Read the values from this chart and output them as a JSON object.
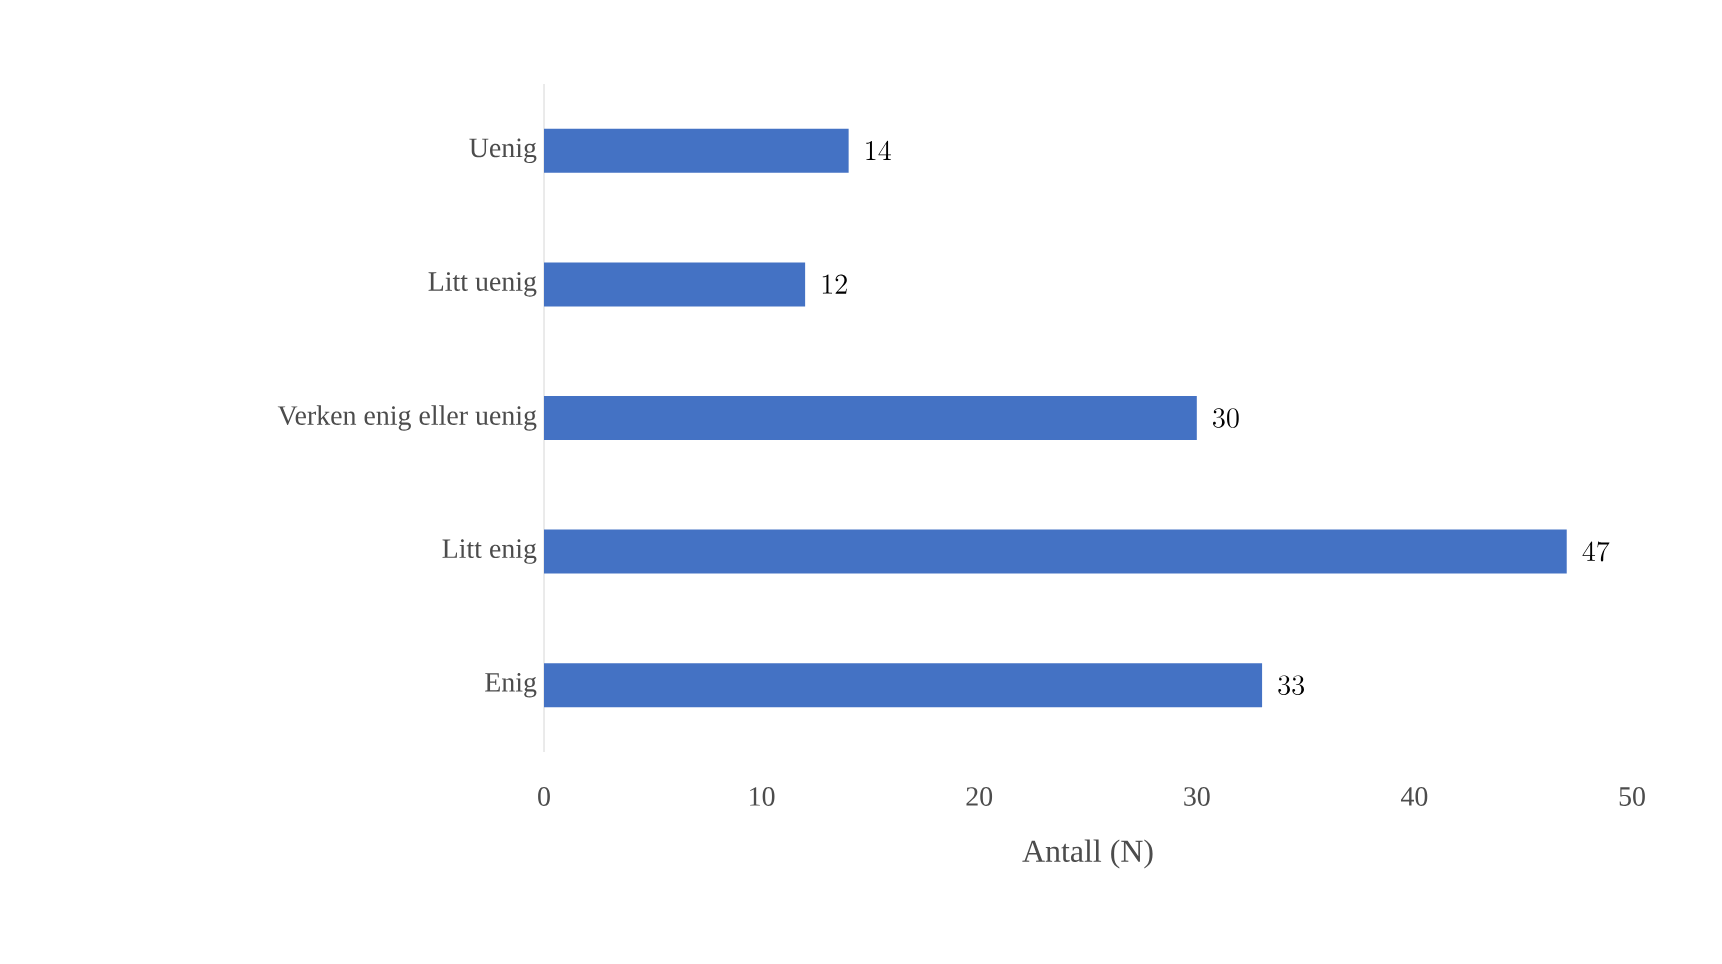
{
  "chart_data": {
    "type": "bar",
    "orientation": "horizontal",
    "categories": [
      "Uenig",
      "Litt uenig",
      "Verken enig eller uenig",
      "Litt enig",
      "Enig"
    ],
    "values": [
      14,
      12,
      30,
      47,
      33
    ],
    "color": "#4472c4",
    "xlabel": "Antall (N)",
    "xlim": [
      0,
      50
    ],
    "xticks": [
      0,
      10,
      20,
      30,
      40,
      50
    ],
    "data_labels": true
  }
}
